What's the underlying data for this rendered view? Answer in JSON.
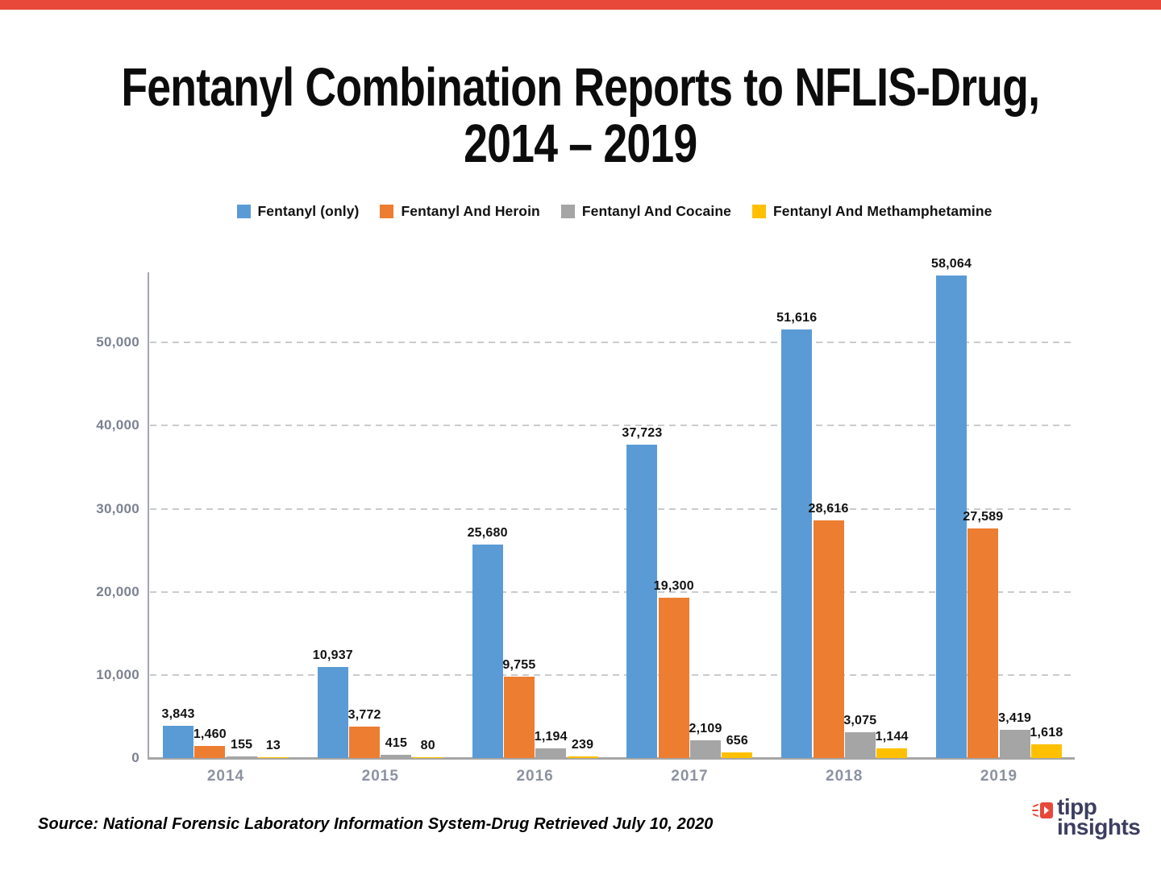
{
  "header": {
    "title_line1": "Fentanyl Combination Reports to NFLIS-Drug,",
    "title_line2": "2014 – 2019",
    "accent_bar_color": "#e8483a"
  },
  "chart_data": {
    "type": "bar",
    "title": "Fentanyl Combination Reports to NFLIS-Drug, 2014 – 2019",
    "categories": [
      "2014",
      "2015",
      "2016",
      "2017",
      "2018",
      "2019"
    ],
    "series": [
      {
        "name": "Fentanyl (only)",
        "color": "#5b9bd5",
        "values": [
          3843,
          10937,
          25680,
          37723,
          51616,
          58064
        ]
      },
      {
        "name": "Fentanyl And Heroin",
        "color": "#ed7d31",
        "values": [
          1460,
          3772,
          9755,
          19300,
          28616,
          27589
        ]
      },
      {
        "name": "Fentanyl And Cocaine",
        "color": "#a5a5a6",
        "values": [
          155,
          415,
          1194,
          2109,
          3075,
          3419
        ]
      },
      {
        "name": "Fentanyl And Methamphetamine",
        "color": "#ffc000",
        "values": [
          13,
          80,
          239,
          656,
          1144,
          1618
        ]
      }
    ],
    "y_ticks": [
      "0",
      "10,000",
      "20,000",
      "30,000",
      "40,000",
      "50,000"
    ],
    "y_tick_interval": 10000,
    "ylim": [
      0,
      58450
    ],
    "grid": "horizontal-dashed",
    "legend_position": "top",
    "value_labels": "comma-thousands above each bar"
  },
  "footer": {
    "source": "Source: National Forensic Laboratory Information System-Drug Retrieved July 10, 2020",
    "logo_line1": "tipp",
    "logo_line2": "insights",
    "logo_text_color": "#3c3e60",
    "logo_icon_color": "#e8483a",
    "logo_icon": "megaphone-arrow-icon"
  }
}
